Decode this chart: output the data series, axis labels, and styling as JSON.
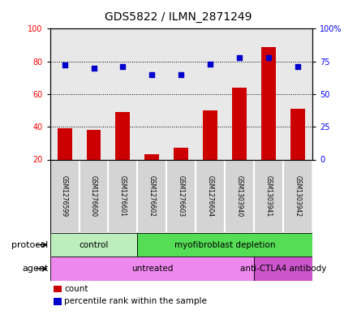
{
  "title": "GDS5822 / ILMN_2871249",
  "samples": [
    "GSM1276599",
    "GSM1276600",
    "GSM1276601",
    "GSM1276602",
    "GSM1276603",
    "GSM1276604",
    "GSM1303940",
    "GSM1303941",
    "GSM1303942"
  ],
  "counts": [
    39,
    38,
    49,
    23,
    27,
    50,
    64,
    89,
    51
  ],
  "percentiles": [
    72,
    70,
    71,
    65,
    65,
    73,
    78,
    78,
    71
  ],
  "ylim_left": [
    20,
    100
  ],
  "ylim_right": [
    0,
    100
  ],
  "yticks_left": [
    20,
    40,
    60,
    80,
    100
  ],
  "yticks_right": [
    0,
    25,
    50,
    75,
    100
  ],
  "ytick_labels_right": [
    "0",
    "25",
    "50",
    "75",
    "100%"
  ],
  "bar_color": "#cc0000",
  "dot_color": "#0000cc",
  "protocol_groups": [
    {
      "label": "control",
      "start": 0,
      "end": 3,
      "color": "#bbeebb"
    },
    {
      "label": "myofibroblast depletion",
      "start": 3,
      "end": 9,
      "color": "#55dd55"
    }
  ],
  "agent_groups": [
    {
      "label": "untreated",
      "start": 0,
      "end": 7,
      "color": "#ee88ee"
    },
    {
      "label": "anti-CTLA4 antibody",
      "start": 7,
      "end": 9,
      "color": "#cc55cc"
    }
  ],
  "protocol_label": "protocol",
  "agent_label": "agent",
  "legend_count_label": "count",
  "legend_pct_label": "percentile rank within the sample",
  "plot_bg": "#e8e8e8",
  "sample_box_color": "#d4d4d4",
  "bar_bottom": 20,
  "bar_width": 0.5
}
